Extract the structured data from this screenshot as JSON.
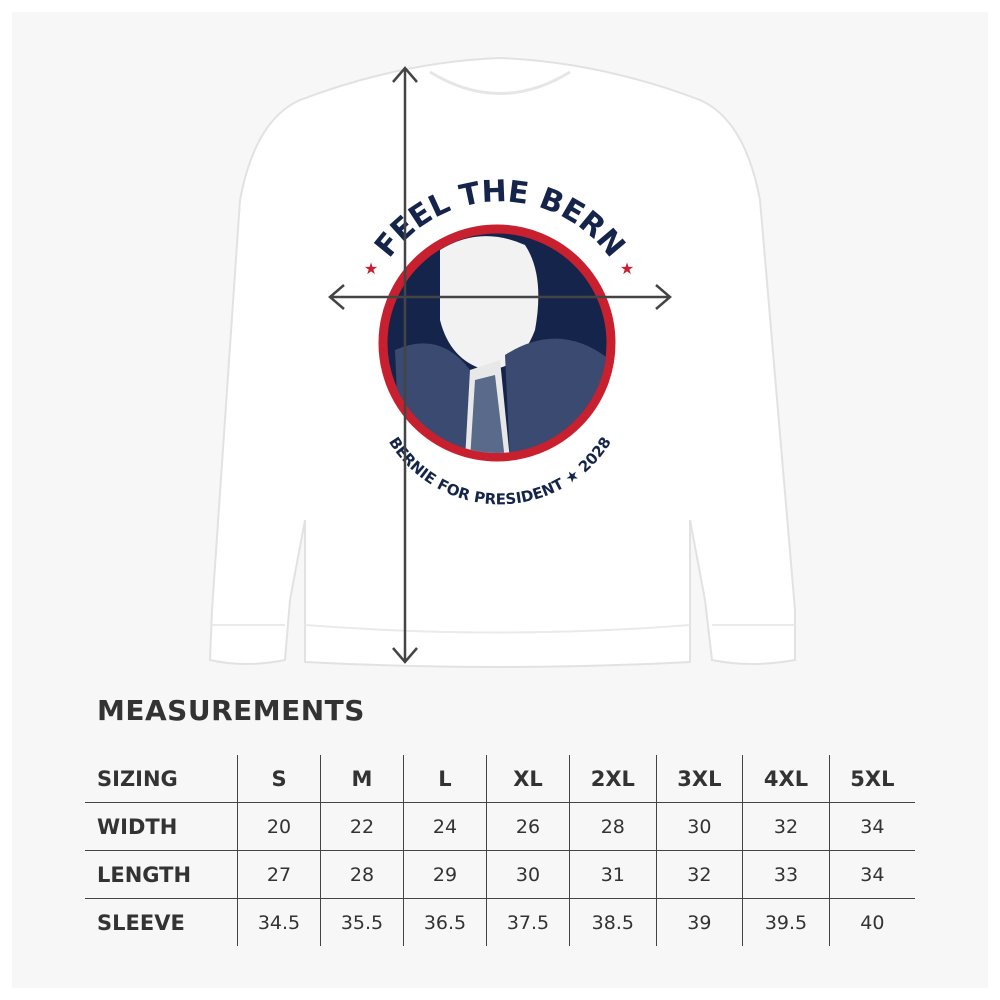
{
  "product": {
    "print_top_text": "FEEL THE BERN",
    "print_bottom_text": "BERNIE FOR PRESIDENT ★ 2028",
    "colors": {
      "navy": "#14244a",
      "red": "#c8202f",
      "shirt": "#ffffff",
      "arrow": "#444444"
    }
  },
  "measurements": {
    "title": "MEASUREMENTS",
    "header": {
      "label": "SIZING",
      "sizes": [
        "S",
        "M",
        "L",
        "XL",
        "2XL",
        "3XL",
        "4XL",
        "5XL"
      ]
    },
    "rows": [
      {
        "label": "WIDTH",
        "values": [
          "20",
          "22",
          "24",
          "26",
          "28",
          "30",
          "32",
          "34"
        ]
      },
      {
        "label": "LENGTH",
        "values": [
          "27",
          "28",
          "29",
          "30",
          "31",
          "32",
          "33",
          "34"
        ]
      },
      {
        "label": "SLEEVE",
        "values": [
          "34.5",
          "35.5",
          "36.5",
          "37.5",
          "38.5",
          "39",
          "39.5",
          "40"
        ]
      }
    ]
  }
}
